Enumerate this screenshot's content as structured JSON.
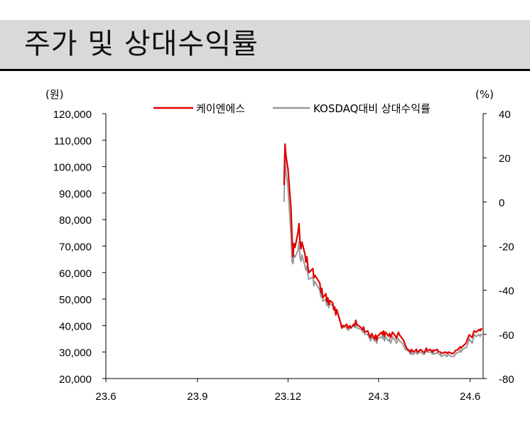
{
  "header": {
    "title": "주가 및 상대수익률"
  },
  "chart_data": {
    "type": "line",
    "left_unit": "(원)",
    "right_unit": "(%)",
    "x_ticks": [
      "23.6",
      "23.9",
      "23.12",
      "24.3",
      "24.6"
    ],
    "y_left_ticks": [
      "120,000",
      "110,000",
      "100,000",
      "90,000",
      "80,000",
      "70,000",
      "60,000",
      "50,000",
      "40,000",
      "30,000",
      "20,000"
    ],
    "y_right_ticks": [
      "40",
      "20",
      "0",
      "-20",
      "-40",
      "-60",
      "-80"
    ],
    "ylim_left": [
      20000,
      120000
    ],
    "ylim_right": [
      -80,
      40
    ],
    "xlim": [
      "2023-06-01",
      "2024-06-14"
    ],
    "series": [
      {
        "name": "케이엔에스",
        "axis": "left",
        "color": "#e00000",
        "points": [
          [
            "2023-11-27",
            93000
          ],
          [
            "2023-11-28",
            108500
          ],
          [
            "2023-11-29",
            104000
          ],
          [
            "2023-11-30",
            101500
          ],
          [
            "2023-12-01",
            99000
          ],
          [
            "2023-12-04",
            84000
          ],
          [
            "2023-12-05",
            74000
          ],
          [
            "2023-12-06",
            66000
          ],
          [
            "2023-12-07",
            71000
          ],
          [
            "2023-12-08",
            69500
          ],
          [
            "2023-12-11",
            75000
          ],
          [
            "2023-12-12",
            78500
          ],
          [
            "2023-12-13",
            72000
          ],
          [
            "2023-12-14",
            69000
          ],
          [
            "2023-12-15",
            71500
          ],
          [
            "2023-12-18",
            67000
          ],
          [
            "2023-12-19",
            64000
          ],
          [
            "2023-12-20",
            66000
          ],
          [
            "2023-12-21",
            62000
          ],
          [
            "2023-12-22",
            60000
          ],
          [
            "2023-12-26",
            61500
          ],
          [
            "2023-12-27",
            58000
          ],
          [
            "2023-12-28",
            59000
          ],
          [
            "2024-01-02",
            56000
          ],
          [
            "2024-01-03",
            52500
          ],
          [
            "2024-01-04",
            54000
          ],
          [
            "2024-01-05",
            50500
          ],
          [
            "2024-01-08",
            52000
          ],
          [
            "2024-01-09",
            49000
          ],
          [
            "2024-01-10",
            50500
          ],
          [
            "2024-01-11",
            48000
          ],
          [
            "2024-01-12",
            49500
          ],
          [
            "2024-01-15",
            48500
          ],
          [
            "2024-01-16",
            46000
          ],
          [
            "2024-01-17",
            47000
          ],
          [
            "2024-01-18",
            44000
          ],
          [
            "2024-01-19",
            46000
          ],
          [
            "2024-01-22",
            42000
          ],
          [
            "2024-01-23",
            41000
          ],
          [
            "2024-01-24",
            39000
          ],
          [
            "2024-01-25",
            40000
          ],
          [
            "2024-01-26",
            39500
          ],
          [
            "2024-01-29",
            40500
          ],
          [
            "2024-01-30",
            39000
          ],
          [
            "2024-01-31",
            39500
          ],
          [
            "2024-02-01",
            40000
          ],
          [
            "2024-02-02",
            39000
          ],
          [
            "2024-02-05",
            40500
          ],
          [
            "2024-02-06",
            40000
          ],
          [
            "2024-02-07",
            42000
          ],
          [
            "2024-02-08",
            40500
          ],
          [
            "2024-02-13",
            39000
          ],
          [
            "2024-02-14",
            38500
          ],
          [
            "2024-02-15",
            39500
          ],
          [
            "2024-02-16",
            37500
          ],
          [
            "2024-02-19",
            38000
          ],
          [
            "2024-02-20",
            37000
          ],
          [
            "2024-02-21",
            36000
          ],
          [
            "2024-02-22",
            35500
          ],
          [
            "2024-02-23",
            37000
          ],
          [
            "2024-02-26",
            35000
          ],
          [
            "2024-02-27",
            36500
          ],
          [
            "2024-02-28",
            34500
          ],
          [
            "2024-02-29",
            36000
          ],
          [
            "2024-03-04",
            37500
          ],
          [
            "2024-03-05",
            36500
          ],
          [
            "2024-03-06",
            38000
          ],
          [
            "2024-03-07",
            36000
          ],
          [
            "2024-03-08",
            37500
          ],
          [
            "2024-03-11",
            36000
          ],
          [
            "2024-03-12",
            37000
          ],
          [
            "2024-03-13",
            35500
          ],
          [
            "2024-03-14",
            36500
          ],
          [
            "2024-03-15",
            37500
          ],
          [
            "2024-03-18",
            36000
          ],
          [
            "2024-03-19",
            35000
          ],
          [
            "2024-03-20",
            36500
          ],
          [
            "2024-03-21",
            37500
          ],
          [
            "2024-03-22",
            36500
          ],
          [
            "2024-03-25",
            35000
          ],
          [
            "2024-03-26",
            34500
          ],
          [
            "2024-03-27",
            33500
          ],
          [
            "2024-03-28",
            32500
          ],
          [
            "2024-03-29",
            31500
          ],
          [
            "2024-04-01",
            30500
          ],
          [
            "2024-04-02",
            30000
          ],
          [
            "2024-04-03",
            31000
          ],
          [
            "2024-04-04",
            30500
          ],
          [
            "2024-04-05",
            30000
          ],
          [
            "2024-04-08",
            31000
          ],
          [
            "2024-04-09",
            30000
          ],
          [
            "2024-04-11",
            30500
          ],
          [
            "2024-04-12",
            31000
          ],
          [
            "2024-04-15",
            30000
          ],
          [
            "2024-04-16",
            29800
          ],
          [
            "2024-04-17",
            30500
          ],
          [
            "2024-04-18",
            31500
          ],
          [
            "2024-04-19",
            30500
          ],
          [
            "2024-04-22",
            31000
          ],
          [
            "2024-04-23",
            30500
          ],
          [
            "2024-04-24",
            30000
          ],
          [
            "2024-04-25",
            30800
          ],
          [
            "2024-04-26",
            30500
          ],
          [
            "2024-04-29",
            31000
          ],
          [
            "2024-04-30",
            30200
          ],
          [
            "2024-05-02",
            30000
          ],
          [
            "2024-05-03",
            29500
          ],
          [
            "2024-05-07",
            30000
          ],
          [
            "2024-05-08",
            29800
          ],
          [
            "2024-05-09",
            29500
          ],
          [
            "2024-05-10",
            30000
          ],
          [
            "2024-05-13",
            29600
          ],
          [
            "2024-05-14",
            29300
          ],
          [
            "2024-05-16",
            29800
          ],
          [
            "2024-05-17",
            30500
          ],
          [
            "2024-05-20",
            31000
          ],
          [
            "2024-05-21",
            31500
          ],
          [
            "2024-05-22",
            32000
          ],
          [
            "2024-05-23",
            31500
          ],
          [
            "2024-05-24",
            32000
          ],
          [
            "2024-05-27",
            33000
          ],
          [
            "2024-05-28",
            33500
          ],
          [
            "2024-05-29",
            34500
          ],
          [
            "2024-05-30",
            35500
          ],
          [
            "2024-05-31",
            36500
          ],
          [
            "2024-06-03",
            35500
          ],
          [
            "2024-06-04",
            37000
          ],
          [
            "2024-06-05",
            38000
          ],
          [
            "2024-06-07",
            37500
          ],
          [
            "2024-06-10",
            38500
          ],
          [
            "2024-06-11",
            38000
          ],
          [
            "2024-06-12",
            38800
          ],
          [
            "2024-06-13",
            38500
          ]
        ]
      },
      {
        "name": "KOSDAQ대비 상대수익률",
        "axis": "right",
        "color": "#999999",
        "points": [
          [
            "2023-11-27",
            0
          ],
          [
            "2023-11-28",
            20
          ],
          [
            "2023-11-29",
            13
          ],
          [
            "2023-11-30",
            10
          ],
          [
            "2023-12-01",
            6
          ],
          [
            "2023-12-04",
            -15
          ],
          [
            "2023-12-05",
            -27
          ],
          [
            "2023-12-06",
            -28
          ],
          [
            "2023-12-07",
            -24
          ],
          [
            "2023-12-08",
            -25
          ],
          [
            "2023-12-11",
            -22
          ],
          [
            "2023-12-12",
            -18
          ],
          [
            "2023-12-13",
            -25
          ],
          [
            "2023-12-14",
            -27
          ],
          [
            "2023-12-15",
            -24
          ],
          [
            "2023-12-18",
            -29
          ],
          [
            "2023-12-19",
            -31
          ],
          [
            "2023-12-20",
            -29
          ],
          [
            "2023-12-21",
            -33
          ],
          [
            "2023-12-22",
            -35
          ],
          [
            "2023-12-26",
            -34
          ],
          [
            "2023-12-27",
            -38
          ],
          [
            "2023-12-28",
            -36
          ],
          [
            "2024-01-02",
            -40
          ],
          [
            "2024-01-03",
            -43
          ],
          [
            "2024-01-04",
            -41
          ],
          [
            "2024-01-05",
            -45
          ],
          [
            "2024-01-08",
            -44
          ],
          [
            "2024-01-09",
            -47
          ],
          [
            "2024-01-10",
            -45
          ],
          [
            "2024-01-11",
            -48
          ],
          [
            "2024-01-12",
            -46
          ],
          [
            "2024-01-15",
            -47
          ],
          [
            "2024-01-16",
            -49
          ],
          [
            "2024-01-17",
            -48
          ],
          [
            "2024-01-18",
            -51
          ],
          [
            "2024-01-19",
            -49
          ],
          [
            "2024-01-22",
            -53
          ],
          [
            "2024-01-23",
            -55
          ],
          [
            "2024-01-24",
            -57
          ],
          [
            "2024-01-25",
            -56
          ],
          [
            "2024-01-26",
            -56
          ],
          [
            "2024-01-29",
            -57
          ],
          [
            "2024-01-30",
            -58
          ],
          [
            "2024-01-31",
            -58
          ],
          [
            "2024-02-01",
            -56
          ],
          [
            "2024-02-02",
            -57
          ],
          [
            "2024-02-05",
            -56
          ],
          [
            "2024-02-06",
            -57
          ],
          [
            "2024-02-07",
            -55
          ],
          [
            "2024-02-08",
            -57
          ],
          [
            "2024-02-13",
            -58
          ],
          [
            "2024-02-14",
            -59
          ],
          [
            "2024-02-15",
            -58
          ],
          [
            "2024-02-16",
            -60
          ],
          [
            "2024-02-19",
            -60
          ],
          [
            "2024-02-20",
            -61
          ],
          [
            "2024-02-21",
            -62
          ],
          [
            "2024-02-22",
            -63
          ],
          [
            "2024-02-23",
            -61
          ],
          [
            "2024-02-26",
            -63
          ],
          [
            "2024-02-27",
            -62
          ],
          [
            "2024-02-28",
            -64
          ],
          [
            "2024-02-29",
            -62
          ],
          [
            "2024-03-04",
            -61
          ],
          [
            "2024-03-05",
            -62
          ],
          [
            "2024-03-06",
            -60
          ],
          [
            "2024-03-07",
            -63
          ],
          [
            "2024-03-08",
            -61
          ],
          [
            "2024-03-11",
            -63
          ],
          [
            "2024-03-12",
            -62
          ],
          [
            "2024-03-13",
            -64
          ],
          [
            "2024-03-14",
            -63
          ],
          [
            "2024-03-15",
            -61
          ],
          [
            "2024-03-18",
            -63
          ],
          [
            "2024-03-19",
            -64
          ],
          [
            "2024-03-20",
            -63
          ],
          [
            "2024-03-21",
            -62
          ],
          [
            "2024-03-22",
            -63
          ],
          [
            "2024-03-25",
            -64
          ],
          [
            "2024-03-26",
            -65
          ],
          [
            "2024-03-27",
            -66
          ],
          [
            "2024-03-28",
            -67
          ],
          [
            "2024-03-29",
            -67
          ],
          [
            "2024-04-01",
            -68
          ],
          [
            "2024-04-02",
            -69
          ],
          [
            "2024-04-03",
            -68
          ],
          [
            "2024-04-04",
            -69
          ],
          [
            "2024-04-05",
            -69
          ],
          [
            "2024-04-08",
            -68
          ],
          [
            "2024-04-09",
            -69
          ],
          [
            "2024-04-11",
            -68
          ],
          [
            "2024-04-12",
            -68
          ],
          [
            "2024-04-15",
            -69
          ],
          [
            "2024-04-16",
            -69
          ],
          [
            "2024-04-17",
            -68
          ],
          [
            "2024-04-18",
            -67
          ],
          [
            "2024-04-19",
            -68
          ],
          [
            "2024-04-22",
            -68
          ],
          [
            "2024-04-23",
            -68
          ],
          [
            "2024-04-24",
            -69
          ],
          [
            "2024-04-25",
            -68
          ],
          [
            "2024-04-26",
            -69
          ],
          [
            "2024-04-29",
            -68
          ],
          [
            "2024-04-30",
            -69
          ],
          [
            "2024-05-02",
            -69
          ],
          [
            "2024-05-03",
            -70
          ],
          [
            "2024-05-07",
            -69
          ],
          [
            "2024-05-08",
            -70
          ],
          [
            "2024-05-09",
            -70
          ],
          [
            "2024-05-10",
            -69
          ],
          [
            "2024-05-13",
            -70
          ],
          [
            "2024-05-14",
            -70
          ],
          [
            "2024-05-16",
            -70
          ],
          [
            "2024-05-17",
            -69
          ],
          [
            "2024-05-20",
            -68
          ],
          [
            "2024-05-21",
            -68
          ],
          [
            "2024-05-22",
            -67
          ],
          [
            "2024-05-23",
            -68
          ],
          [
            "2024-05-24",
            -67
          ],
          [
            "2024-05-27",
            -66
          ],
          [
            "2024-05-28",
            -66
          ],
          [
            "2024-05-29",
            -65
          ],
          [
            "2024-05-30",
            -64
          ],
          [
            "2024-05-31",
            -62
          ],
          [
            "2024-06-03",
            -64
          ],
          [
            "2024-06-04",
            -62
          ],
          [
            "2024-06-05",
            -60
          ],
          [
            "2024-06-07",
            -61
          ],
          [
            "2024-06-10",
            -60
          ],
          [
            "2024-06-11",
            -61
          ],
          [
            "2024-06-12",
            -60
          ],
          [
            "2024-06-13",
            -60
          ]
        ]
      }
    ]
  }
}
